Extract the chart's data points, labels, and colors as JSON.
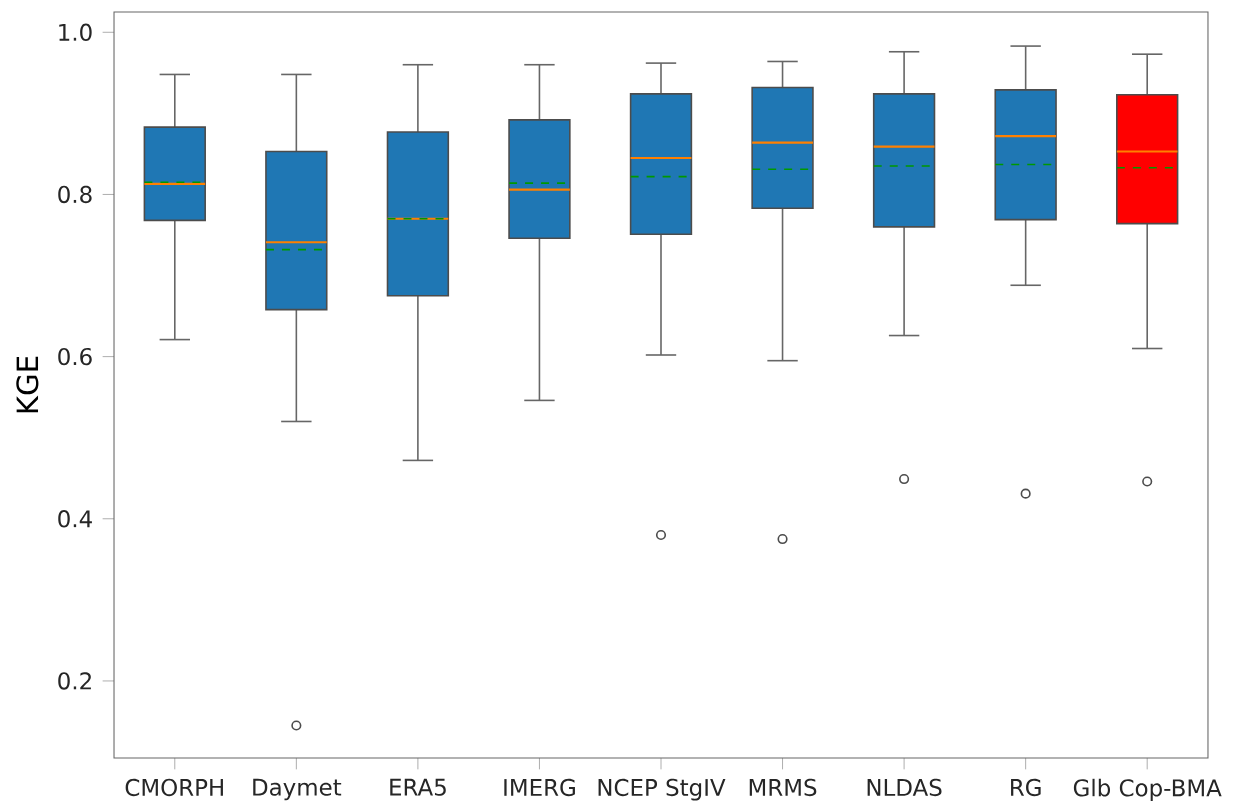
{
  "chart_data": {
    "type": "box",
    "ylabel": "KGE",
    "categories": [
      "CMORPH",
      "Daymet",
      "ERA5",
      "IMERG",
      "NCEP StgIV",
      "MRMS",
      "NLDAS",
      "RG",
      "Glb Cop-BMA"
    ],
    "colors": [
      "#1f77b4",
      "#1f77b4",
      "#1f77b4",
      "#1f77b4",
      "#1f77b4",
      "#1f77b4",
      "#1f77b4",
      "#1f77b4",
      "#ff0000"
    ],
    "boxes": [
      {
        "low": 0.621,
        "q1": 0.768,
        "median": 0.813,
        "q3": 0.883,
        "high": 0.948,
        "mean": 0.815
      },
      {
        "low": 0.52,
        "q1": 0.658,
        "median": 0.741,
        "q3": 0.853,
        "high": 0.948,
        "mean": 0.732,
        "outliers": [
          0.145
        ]
      },
      {
        "low": 0.472,
        "q1": 0.675,
        "median": 0.77,
        "q3": 0.877,
        "high": 0.96,
        "mean": 0.77
      },
      {
        "low": 0.546,
        "q1": 0.746,
        "median": 0.806,
        "q3": 0.892,
        "high": 0.96,
        "mean": 0.814
      },
      {
        "low": 0.602,
        "q1": 0.751,
        "median": 0.845,
        "q3": 0.924,
        "high": 0.962,
        "mean": 0.822,
        "outliers": [
          0.38
        ]
      },
      {
        "low": 0.595,
        "q1": 0.783,
        "median": 0.864,
        "q3": 0.932,
        "high": 0.964,
        "mean": 0.831,
        "outliers": [
          0.375
        ]
      },
      {
        "low": 0.626,
        "q1": 0.76,
        "median": 0.859,
        "q3": 0.924,
        "high": 0.976,
        "mean": 0.835,
        "outliers": [
          0.449
        ]
      },
      {
        "low": 0.688,
        "q1": 0.769,
        "median": 0.872,
        "q3": 0.929,
        "high": 0.983,
        "mean": 0.837,
        "outliers": [
          0.431
        ]
      },
      {
        "low": 0.61,
        "q1": 0.764,
        "median": 0.853,
        "q3": 0.923,
        "high": 0.973,
        "mean": 0.833,
        "outliers": [
          0.446
        ]
      }
    ],
    "ylim": [
      0.105,
      1.025
    ],
    "yticks": [
      0.2,
      0.4,
      0.6,
      0.8,
      {
        "value": 1.0,
        "label": "1.0"
      }
    ]
  }
}
